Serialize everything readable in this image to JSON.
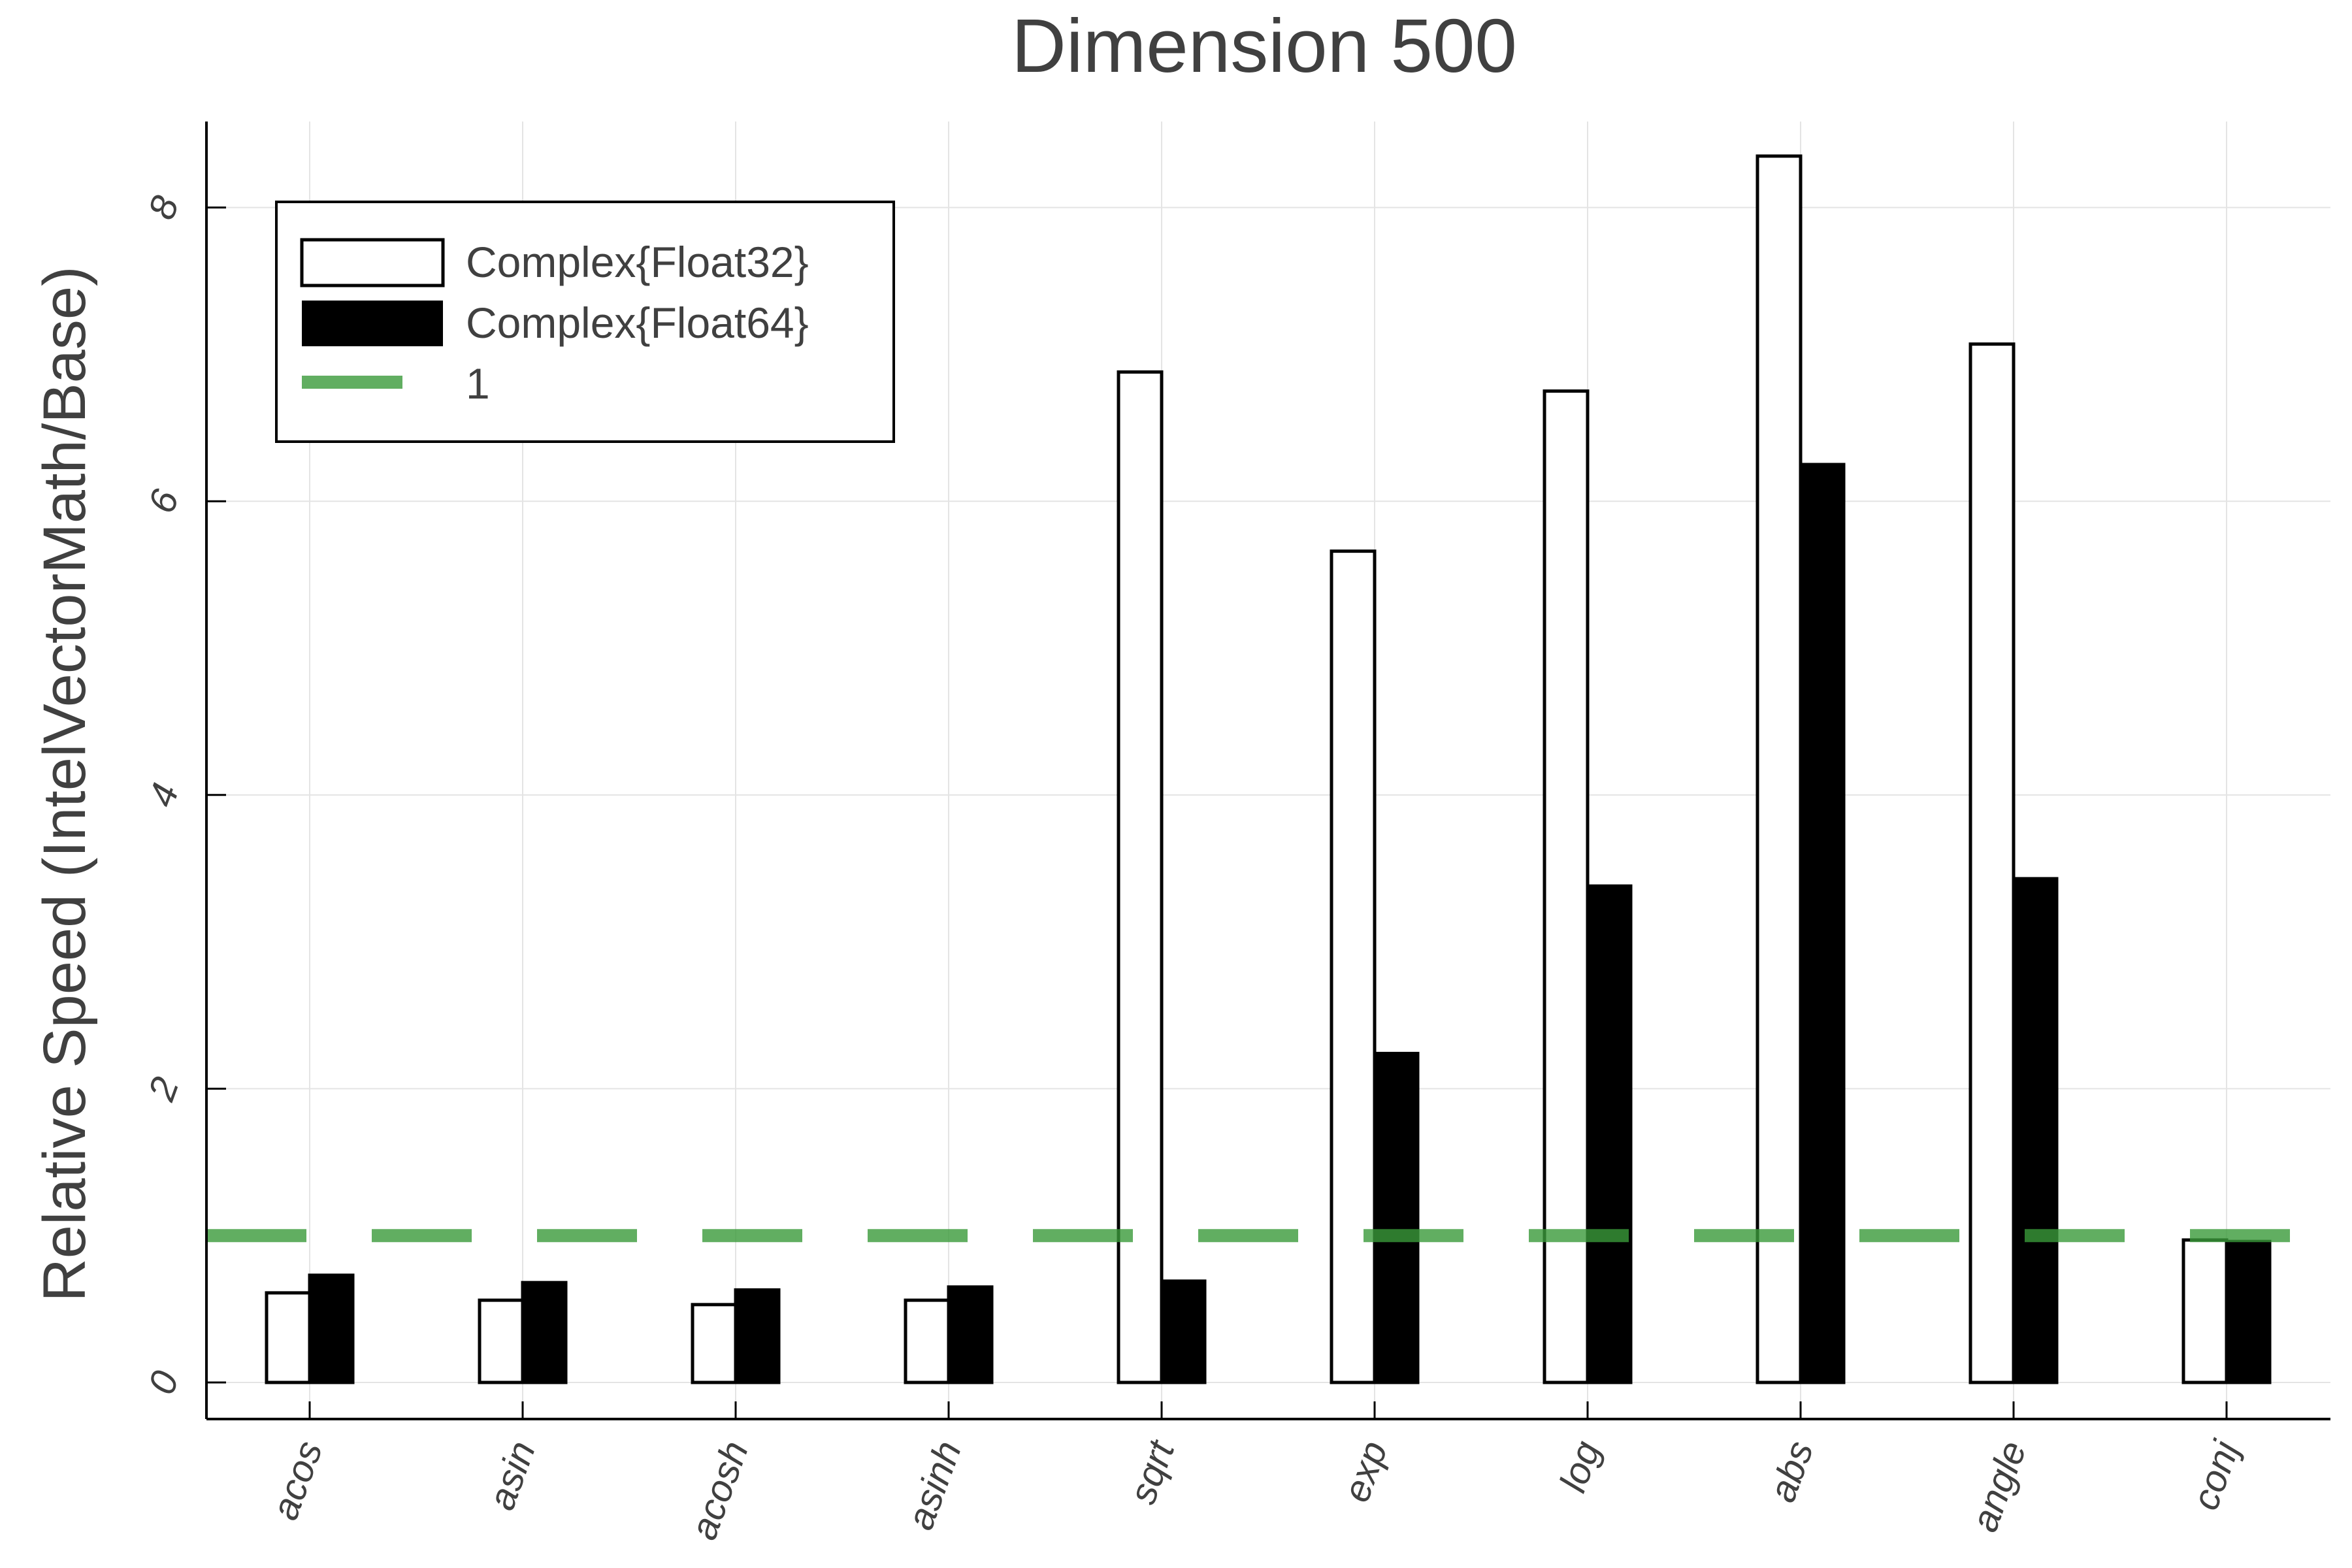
{
  "chart_data": {
    "type": "bar",
    "title": "Dimension 500",
    "xlabel": "",
    "ylabel": "Relative Speed (IntelVectorMath/Base)",
    "ylim": [
      -0.25,
      8.6
    ],
    "yticks": [
      0,
      2,
      4,
      6,
      8
    ],
    "grid": true,
    "legend_position": "top-left",
    "categories": [
      "acos",
      "asin",
      "acosh",
      "asinh",
      "sqrt",
      "exp",
      "log",
      "abs",
      "angle",
      "conj"
    ],
    "series": [
      {
        "name": "Complex{Float32}",
        "color": "#ffffff",
        "values": [
          0.61,
          0.56,
          0.53,
          0.56,
          6.88,
          5.66,
          6.75,
          8.35,
          7.07,
          0.97
        ]
      },
      {
        "name": "Complex{Float64}",
        "color": "#000000",
        "values": [
          0.73,
          0.68,
          0.63,
          0.65,
          0.69,
          2.24,
          3.38,
          6.25,
          3.43,
          0.96
        ]
      }
    ],
    "reference_line": {
      "name": "1",
      "value": 1,
      "color": "#3a9a3a",
      "style": "dashed"
    }
  }
}
